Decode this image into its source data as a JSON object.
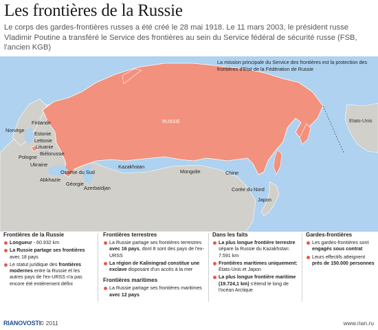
{
  "title": "Les frontières de la Russie",
  "intro": "Le corps des gardes-frontières russes a été créé le 28 mai 1918. Le 11 mars 2003, le président russe Vladimir Poutine a transféré le Service des frontières au sein du Service fédéral de sécurité russe (FSB, l'ancien KGB)",
  "map": {
    "note": "La mission principale du Service des frontières est la protection des frontières d'Etat de la Fédération de Russie",
    "colors": {
      "russia": "#f2917d",
      "other_land": "#d2d0cb",
      "sea": "#aed2ef"
    },
    "labels": {
      "russie": "RUSSIE",
      "finlande": "Finlande",
      "norvege": "Norvège",
      "estonie": "Estonie",
      "lettonie": "Lettonie",
      "lituanie": "Lituanie",
      "bielorussie": "Biélorussie",
      "pologne": "Pologne",
      "ukraine": "Ukraine",
      "ossetie": "Ossétie du Sud",
      "abkhazie": "Abkhazie",
      "georgie": "Géorgie",
      "azerbaidjan": "Azerbaïdjan",
      "kazakhstan": "Kazakhstan",
      "mongolie": "Mongolie",
      "chine": "Chine",
      "coree": "Corée du Nord",
      "japon": "Japon",
      "usa": "Etats-Unis"
    }
  },
  "panels": {
    "p1": {
      "heading": "Frontières de la Russie",
      "items": [
        {
          "b": "Longueur",
          "t": " - 60.932 km"
        },
        {
          "b": "La Russie partage ses frontières",
          "t": " avec 18 pays"
        },
        {
          "t": "Le statut juridique des ",
          "b": "frontières modernes",
          "t2": " entre la Russie et les autres pays de l'ex-URSS n'a pas encore été entièrement défini"
        }
      ]
    },
    "p2": {
      "heading": "Frontières terrestres",
      "items": [
        {
          "t": "La Russie partage ses frontières terrestres ",
          "b": "avec 16 pays",
          "t2": ", dont 8 sont des pays de l'ex-URSS"
        },
        {
          "b": "La région de Kaliningrad constitue une exclave",
          "t": " disposant d'un accès à la mer"
        }
      ],
      "heading2": "Frontières maritimes",
      "items2": [
        {
          "t": "La Russie partage ses frontières maritimes ",
          "b": "avec 12 pays"
        }
      ]
    },
    "p3": {
      "heading": "Dans les faits",
      "items": [
        {
          "b": "La plus longue frontière terrestre",
          "t": " sépare la Russie du Kazakhstan: 7.591 km"
        },
        {
          "b": "Frontières maritimes uniquement:",
          "t": " Etats-Unis et Japon"
        },
        {
          "b": "La plus longue frontière maritime (19.724,1 km)",
          "t": " s'étend le long de l'océan Arctique"
        }
      ]
    },
    "p4": {
      "heading": "Gardes-frontières",
      "items": [
        {
          "t": "Les gardes-frontières sont ",
          "b": "engagés sous contrat"
        },
        {
          "t": "Leurs effectifs atteignent ",
          "b": "près de 150.000 personnes"
        }
      ]
    }
  },
  "footer": {
    "logo": "RIANOVOSTI",
    "copyright": "© 2011",
    "url": "www.rian.ru"
  }
}
